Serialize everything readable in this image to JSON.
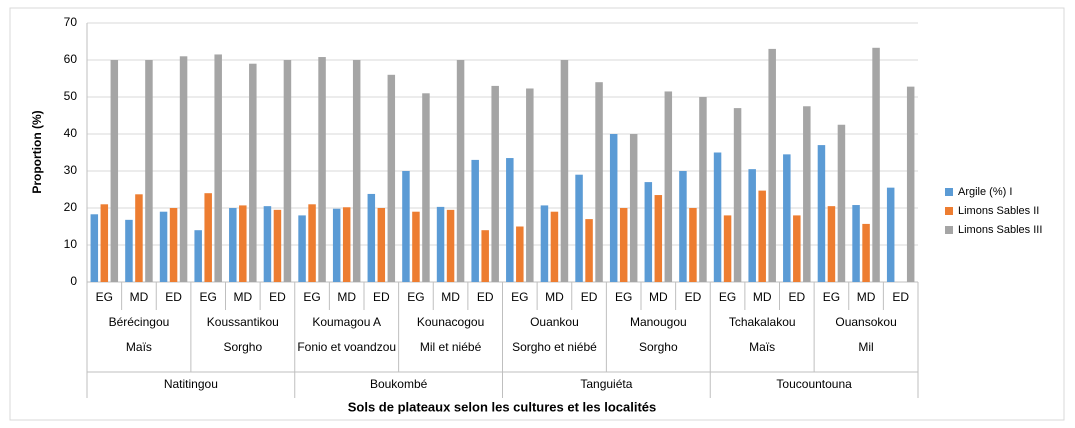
{
  "chart_data": {
    "type": "bar",
    "ylabel": "Proportion (%)",
    "xlabel": "Sols de plateaux selon les cultures et les localités",
    "categories": [
      "EG",
      "MD",
      "ED",
      "EG",
      "MD",
      "ED",
      "EG",
      "MD",
      "ED",
      "EG",
      "MD",
      "ED",
      "EG",
      "MD",
      "ED",
      "EG",
      "MD",
      "ED",
      "EG",
      "MD",
      "ED",
      "EG",
      "MD",
      "ED"
    ],
    "localities": [
      "Bérécingou",
      "Koussantikou",
      "Koumagou A",
      "Kounacogou",
      "Ouankou",
      "Manougou",
      "Tchakalakou",
      "Ouansokou"
    ],
    "cultures": [
      "Maïs",
      "Sorgho",
      "Fonio et voandzou",
      "Mil et niébé",
      "Sorgho et niébé",
      "Sorgho",
      "Maïs",
      "Mil"
    ],
    "communes": [
      "Natitingou",
      "Boukombé",
      "Tanguiéta",
      "Toucountouna"
    ],
    "series": [
      {
        "name": "Argile (%) I",
        "color": "#5b9bd5",
        "values": [
          18.3,
          16.8,
          19,
          14,
          20,
          20.5,
          18,
          19.8,
          23.8,
          30,
          20.3,
          33,
          33.5,
          20.7,
          29,
          40,
          27,
          30,
          35,
          30.5,
          34.5,
          37,
          20.8,
          25.5
        ]
      },
      {
        "name": "Limons Sables II",
        "color": "#ed7d31",
        "values": [
          21,
          23.7,
          20,
          24,
          20.7,
          19.5,
          21,
          20.2,
          20,
          19,
          19.5,
          14,
          15,
          19,
          17,
          20,
          23.5,
          20,
          18,
          24.7,
          18,
          20.5,
          15.7,
          null
        ]
      },
      {
        "name": "Limons Sables III",
        "color": "#a5a5a5",
        "values": [
          60,
          60,
          61,
          61.5,
          59,
          60,
          60.8,
          60,
          56,
          51,
          60,
          53,
          52.3,
          60,
          54,
          40,
          51.5,
          50,
          47,
          63,
          47.5,
          42.5,
          63.3,
          52.8
        ]
      }
    ],
    "ylim": [
      0,
      70
    ],
    "yticks": [
      0,
      10,
      20,
      30,
      40,
      50,
      60,
      70
    ],
    "grid": true,
    "legend": "right"
  }
}
